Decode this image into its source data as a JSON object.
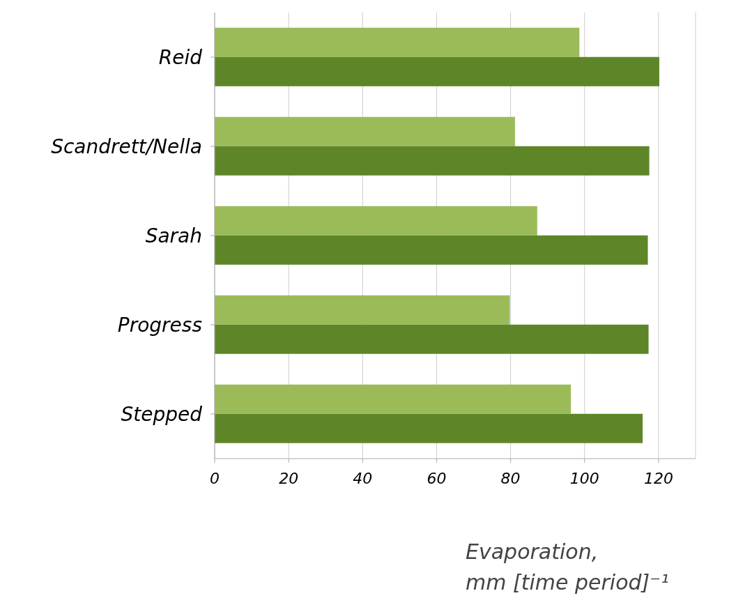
{
  "chart_data": {
    "type": "bar",
    "orientation": "horizontal",
    "categories": [
      "Reid",
      "Scandrett/Nella",
      "Sarah",
      "Progress",
      "Stepped"
    ],
    "series": [
      {
        "color": "#9bbb59",
        "values": [
          98.6,
          81.2,
          87.2,
          79.8,
          96.3
        ]
      },
      {
        "color": "#5e8628",
        "values": [
          120.2,
          117.5,
          117.1,
          117.3,
          115.7
        ]
      }
    ],
    "xlim": [
      0,
      130
    ],
    "xticks": [
      0,
      20,
      40,
      60,
      80,
      100,
      120
    ],
    "grid": "x",
    "legend": false,
    "xlabel": "Evaporation, mm [time period]⁻¹"
  }
}
